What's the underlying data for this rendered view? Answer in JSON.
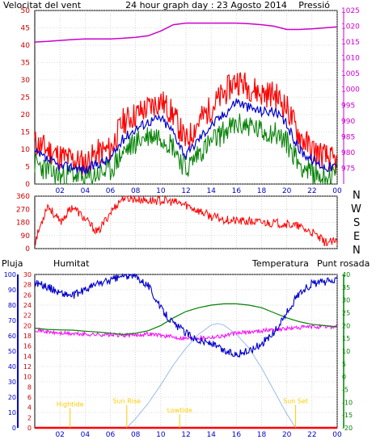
{
  "header": {
    "wind_label": "Velocitat del vent",
    "title": "24 hour graph day : 23 Agosto 2014",
    "pressure_label": "Pressió"
  },
  "panel2": {
    "direction_labels": [
      "N",
      "W",
      "S",
      "E",
      "N"
    ]
  },
  "panel3": {
    "rain_label": "Pluja",
    "humidity_label": "Humitat",
    "temperature_label": "Temperatura",
    "dew_label": "Punt rosada",
    "annotations": [
      "Sun Rise",
      "Sun Set",
      "Hightide",
      "Lowtide"
    ]
  },
  "colors": {
    "wind_max": "#ff0000",
    "wind_avg": "#0000cc",
    "wind_gust_low": "#008000",
    "pressure": "#cc00cc",
    "direction": "#ff0000",
    "humidity": "#0000cc",
    "temperature": "#008000",
    "dew": "#ff00ff",
    "solar": "#99bbee",
    "rain": "#ff0000",
    "sun_marker": "#ffcc00",
    "axis_red": "#cc0000",
    "axis_blue": "#0000cc",
    "axis_green": "#008000",
    "axis_magenta": "#cc00cc"
  },
  "chart_data": [
    {
      "type": "line",
      "name": "wind_pressure",
      "x_ticks": [
        "02",
        "04",
        "06",
        "08",
        "10",
        "12",
        "14",
        "16",
        "18",
        "20",
        "22",
        "00"
      ],
      "left_axis": {
        "ylim": [
          0,
          50
        ],
        "ticks": [
          0,
          5,
          10,
          15,
          20,
          25,
          30,
          35,
          40,
          45,
          50
        ]
      },
      "right_axis": {
        "ylim": [
          970,
          1025
        ],
        "ticks": [
          975,
          980,
          985,
          990,
          995,
          1000,
          1005,
          1010,
          1015,
          1020,
          1025
        ]
      },
      "grid": true,
      "series": [
        {
          "role": "wind_max",
          "x": [
            0,
            1,
            2,
            3,
            4,
            5,
            6,
            7,
            8,
            9,
            10,
            11,
            12,
            13,
            14,
            15,
            16,
            17,
            18,
            19,
            20,
            21,
            22,
            23,
            24
          ],
          "values": [
            12,
            10,
            8,
            7,
            6,
            9,
            10,
            18,
            20,
            22,
            24,
            20,
            12,
            18,
            22,
            26,
            30,
            28,
            26,
            26,
            22,
            14,
            10,
            8,
            6
          ]
        },
        {
          "role": "wind_avg",
          "x": [
            0,
            1,
            2,
            3,
            4,
            5,
            6,
            7,
            8,
            9,
            10,
            11,
            12,
            13,
            14,
            15,
            16,
            17,
            18,
            19,
            20,
            21,
            22,
            23,
            24
          ],
          "values": [
            9,
            7,
            5,
            5,
            4,
            6,
            7,
            13,
            16,
            18,
            19,
            15,
            8,
            13,
            17,
            20,
            24,
            22,
            21,
            21,
            17,
            10,
            7,
            5,
            5
          ]
        },
        {
          "role": "wind_gust_low",
          "x": [
            0,
            1,
            2,
            3,
            4,
            5,
            6,
            7,
            8,
            9,
            10,
            11,
            12,
            13,
            14,
            15,
            16,
            17,
            18,
            19,
            20,
            21,
            22,
            23,
            24
          ],
          "values": [
            6,
            4,
            2,
            3,
            1,
            3,
            4,
            9,
            12,
            14,
            14,
            11,
            4,
            9,
            12,
            15,
            17,
            17,
            15,
            15,
            12,
            6,
            3,
            2,
            3
          ]
        },
        {
          "role": "pressure",
          "x": [
            0,
            1,
            2,
            3,
            4,
            5,
            6,
            7,
            8,
            9,
            10,
            11,
            12,
            13,
            14,
            15,
            16,
            17,
            18,
            19,
            20,
            21,
            22,
            23,
            24
          ],
          "values": [
            1015,
            1015.2,
            1015.5,
            1015.8,
            1016,
            1016,
            1016,
            1016.2,
            1016.5,
            1017,
            1018.5,
            1020.5,
            1021,
            1021,
            1021,
            1021,
            1021,
            1020.8,
            1020.5,
            1020,
            1019,
            1019,
            1019.2,
            1019.5,
            1019.8
          ]
        }
      ]
    },
    {
      "type": "scatter",
      "name": "wind_direction",
      "x_ticks": [
        "02",
        "04",
        "06",
        "08",
        "10",
        "12",
        "14",
        "16",
        "18",
        "20",
        "22",
        "00"
      ],
      "left_axis": {
        "ylim": [
          0,
          360
        ],
        "ticks": [
          0,
          90,
          180,
          270,
          360
        ]
      },
      "grid": true,
      "series": [
        {
          "role": "direction",
          "x": [
            0,
            1,
            2,
            3,
            4,
            5,
            6,
            7,
            8,
            9,
            10,
            11,
            12,
            13,
            14,
            15,
            16,
            17,
            18,
            19,
            20,
            21,
            22,
            23,
            24
          ],
          "values": [
            40,
            300,
            180,
            290,
            200,
            110,
            250,
            350,
            340,
            330,
            330,
            320,
            300,
            260,
            220,
            200,
            190,
            185,
            180,
            175,
            170,
            150,
            110,
            45,
            45
          ]
        }
      ]
    },
    {
      "type": "line",
      "name": "rain_humidity_temperature",
      "x_ticks": [
        "02",
        "04",
        "06",
        "08",
        "10",
        "12",
        "14",
        "16",
        "18",
        "20",
        "22",
        "00"
      ],
      "rain_axis": {
        "ylim": [
          0,
          30
        ],
        "ticks": [
          0,
          2,
          4,
          6,
          8,
          10,
          12,
          14,
          16,
          18,
          20,
          22,
          24,
          26,
          28,
          30
        ]
      },
      "humidity_axis": {
        "ylim": [
          0,
          100
        ],
        "ticks": [
          0,
          10,
          20,
          30,
          40,
          50,
          60,
          70,
          80,
          90,
          100
        ]
      },
      "temperature_axis": {
        "ylim": [
          -20,
          40
        ],
        "ticks": [
          -20,
          -15,
          -10,
          -5,
          0,
          5,
          10,
          15,
          20,
          25,
          30,
          35,
          40
        ]
      },
      "grid": true,
      "series": [
        {
          "role": "humidity",
          "x": [
            0,
            1,
            2,
            3,
            4,
            5,
            6,
            7,
            8,
            9,
            10,
            11,
            12,
            13,
            14,
            15,
            16,
            17,
            18,
            19,
            20,
            21,
            22,
            23,
            24
          ],
          "values": [
            95,
            92,
            88,
            86,
            90,
            94,
            96,
            99,
            99,
            93,
            78,
            68,
            62,
            57,
            55,
            50,
            48,
            50,
            55,
            62,
            75,
            88,
            94,
            95,
            96
          ]
        },
        {
          "role": "temperature",
          "x": [
            0,
            1,
            2,
            3,
            4,
            5,
            6,
            7,
            8,
            9,
            10,
            11,
            12,
            13,
            14,
            15,
            16,
            17,
            18,
            19,
            20,
            21,
            22,
            23,
            24
          ],
          "values": [
            19,
            18.5,
            18.3,
            18.2,
            17.8,
            17.5,
            17,
            16.5,
            17,
            18,
            20,
            23,
            25.5,
            27,
            28,
            28.5,
            28.5,
            28,
            27,
            25,
            23,
            21.5,
            20.5,
            20,
            19.5
          ]
        },
        {
          "role": "dew",
          "x": [
            0,
            1,
            2,
            3,
            4,
            5,
            6,
            7,
            8,
            9,
            10,
            11,
            12,
            13,
            14,
            15,
            16,
            17,
            18,
            19,
            20,
            21,
            22,
            23,
            24
          ],
          "values": [
            18.5,
            17.5,
            17,
            16.8,
            16.6,
            16.5,
            16.4,
            16.2,
            16.3,
            16.8,
            16.2,
            15.5,
            15,
            15.2,
            15.5,
            16,
            17,
            17.5,
            18,
            18.5,
            18.8,
            19.2,
            19.5,
            19.5,
            19.6
          ]
        },
        {
          "role": "solar",
          "x": [
            7.3,
            8,
            9,
            10,
            11,
            12,
            13,
            14,
            14.5,
            15,
            16,
            17,
            18,
            19,
            20,
            20.7
          ],
          "values": [
            0,
            6,
            16,
            28,
            41,
            52,
            61,
            67,
            68,
            67,
            61,
            52,
            39,
            24,
            9,
            0
          ]
        },
        {
          "role": "rain",
          "x": [
            0,
            24
          ],
          "values": [
            0,
            0
          ]
        }
      ],
      "markers": [
        {
          "label_index": 2,
          "x": 2.8,
          "y": 14
        },
        {
          "label_index": 0,
          "x": 7.3,
          "y": 16
        },
        {
          "label_index": 3,
          "x": 11.5,
          "y": 10
        },
        {
          "label_index": 1,
          "x": 20.7,
          "y": 16
        }
      ]
    }
  ]
}
